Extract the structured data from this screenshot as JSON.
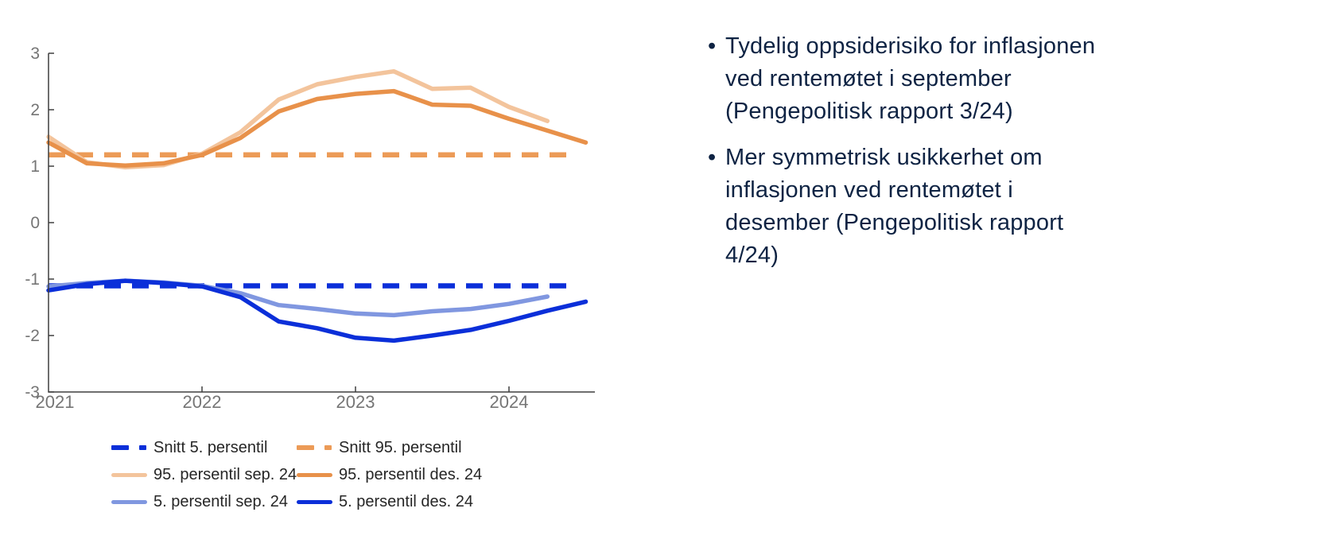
{
  "colors": {
    "axis": "#3f3f3f",
    "tick_label": "#757575",
    "legend_text": "#262626",
    "text_navy": "#0e2343",
    "blue_dark": "#0b2fd9",
    "blue_light": "#8097e0",
    "orange_dark": "#e8914a",
    "orange_light": "#f3c49c",
    "orange_mid": "#ec9b57"
  },
  "chart_data": {
    "type": "line",
    "title": "",
    "xlabel": "",
    "ylabel": "",
    "grid": false,
    "legend_position": "below",
    "ylim": [
      -3,
      3
    ],
    "xlim": [
      2021,
      2024.55
    ],
    "yticks": [
      3,
      2,
      1,
      0,
      -1,
      -2,
      -3
    ],
    "xticks": [
      2021,
      2022,
      2023,
      2024
    ],
    "x": [
      2021,
      2021.25,
      2021.5,
      2021.75,
      2022,
      2022.25,
      2022.5,
      2022.75,
      2023,
      2023.25,
      2023.5,
      2023.75,
      2024,
      2024.25,
      2024.5
    ],
    "series": [
      {
        "name": "Snitt 5. persentil",
        "style": "dashed",
        "color_key": "blue_dark",
        "x": [
          2021,
          2024.43
        ],
        "values": [
          -1.12,
          -1.12
        ]
      },
      {
        "name": "Snitt 95. persentil",
        "style": "dashed",
        "color_key": "orange_mid",
        "x": [
          2021,
          2024.43
        ],
        "values": [
          1.2,
          1.2
        ]
      },
      {
        "name": "95. persentil sep. 24",
        "style": "solid",
        "color_key": "orange_light",
        "values": [
          1.52,
          1.07,
          0.98,
          1.02,
          1.22,
          1.6,
          2.18,
          2.45,
          2.58,
          2.68,
          2.37,
          2.39,
          2.05,
          1.8
        ]
      },
      {
        "name": "5. persentil sep. 24",
        "style": "solid",
        "color_key": "blue_light",
        "values": [
          -1.13,
          -1.07,
          -1.03,
          -1.06,
          -1.12,
          -1.25,
          -1.46,
          -1.53,
          -1.61,
          -1.64,
          -1.57,
          -1.53,
          -1.44,
          -1.31
        ]
      },
      {
        "name": "95. persentil des. 24",
        "style": "solid",
        "color_key": "orange_dark",
        "values": [
          1.42,
          1.05,
          1.01,
          1.05,
          1.2,
          1.5,
          1.97,
          2.19,
          2.28,
          2.33,
          2.09,
          2.07,
          1.84,
          1.63,
          1.42
        ]
      },
      {
        "name": "5. persentil des. 24",
        "style": "solid",
        "color_key": "blue_dark",
        "values": [
          -1.2,
          -1.09,
          -1.03,
          -1.07,
          -1.13,
          -1.32,
          -1.75,
          -1.87,
          -2.04,
          -2.09,
          -2.0,
          -1.9,
          -1.74,
          -1.56,
          -1.4
        ]
      }
    ]
  },
  "legend": {
    "items": [
      {
        "label": "Snitt 5. persentil",
        "color_key": "blue_dark",
        "dashed": true
      },
      {
        "label": "Snitt 95. persentil",
        "color_key": "orange_mid",
        "dashed": true
      },
      {
        "label": "95. persentil sep. 24",
        "color_key": "orange_light",
        "dashed": false
      },
      {
        "label": "95. persentil des. 24",
        "color_key": "orange_dark",
        "dashed": false
      },
      {
        "label": "5. persentil sep. 24",
        "color_key": "blue_light",
        "dashed": false
      },
      {
        "label": "5. persentil des. 24",
        "color_key": "blue_dark",
        "dashed": false
      }
    ]
  },
  "bullets": [
    {
      "lines": [
        "Tydelig oppsiderisiko for inflasjonen",
        "ved rentemøtet i september",
        "(Pengepolitisk rapport 3/24)"
      ]
    },
    {
      "lines": [
        "Mer symmetrisk usikkerhet om",
        "inflasjonen ved rentemøtet i",
        "desember (Pengepolitisk rapport",
        "4/24)"
      ]
    }
  ]
}
